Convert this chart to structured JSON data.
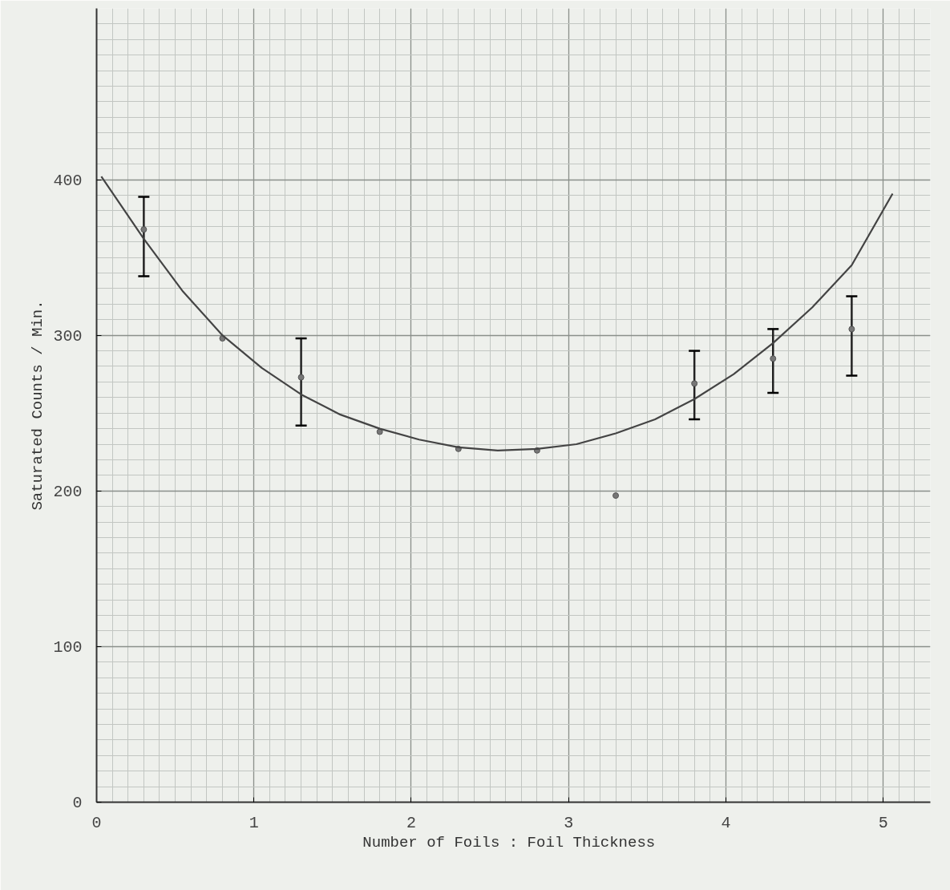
{
  "chart_data": {
    "type": "scatter",
    "xlabel": "Number of Foils : Foil  Thickness",
    "ylabel": "Saturated Counts / Min.",
    "xlim": [
      0,
      5.3
    ],
    "ylim": [
      0,
      510
    ],
    "xticks": [
      0,
      1,
      2,
      3,
      4,
      5
    ],
    "yticks": [
      0,
      100,
      200,
      300,
      400
    ],
    "grid": true,
    "marker": "circle",
    "series": [
      {
        "color": "#555555",
        "x": [
          0.3,
          0.8,
          1.3,
          1.8,
          2.3,
          2.8,
          3.3,
          3.8,
          4.3,
          4.8
        ],
        "values": [
          368,
          298,
          273,
          238,
          227,
          226,
          197,
          269,
          285,
          304
        ],
        "errors": [
          [
            338,
            389
          ],
          null,
          [
            242,
            298
          ],
          null,
          null,
          null,
          null,
          [
            246,
            290
          ],
          [
            263,
            304
          ],
          [
            274,
            325
          ]
        ]
      },
      {
        "type": "line",
        "color": "#444444",
        "marker": "none",
        "x": [
          0.03,
          0.3,
          0.55,
          0.8,
          1.05,
          1.3,
          1.55,
          1.8,
          2.05,
          2.3,
          2.55,
          2.8,
          3.05,
          3.3,
          3.55,
          3.8,
          4.05,
          4.3,
          4.55,
          4.8,
          5.06
        ],
        "values": [
          402,
          362,
          328,
          300,
          279,
          262,
          249,
          240,
          233,
          228,
          226,
          227,
          230,
          237,
          246,
          259,
          275,
          295,
          318,
          345,
          391
        ]
      }
    ]
  }
}
